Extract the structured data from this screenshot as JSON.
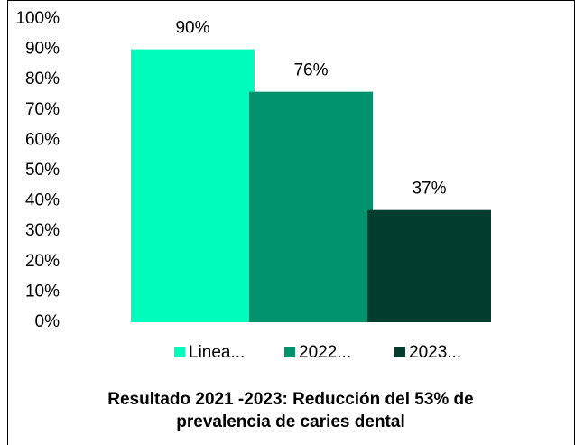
{
  "chart_data": {
    "type": "bar",
    "title": [
      "Resultado 2021 -2023: Reducción del 53% de",
      "prevalencia de caries dental"
    ],
    "categories": [
      null
    ],
    "series": [
      {
        "name": "Linea...",
        "color": "#00fcbd",
        "values": [
          90
        ],
        "value_labels": [
          "90%"
        ]
      },
      {
        "name": "2022...",
        "color": "#00936e",
        "values": [
          76
        ],
        "value_labels": [
          "76%"
        ]
      },
      {
        "name": "2023...",
        "color": "#003d2f",
        "values": [
          37
        ],
        "value_labels": [
          "37%"
        ]
      }
    ],
    "ylim": [
      0,
      100
    ],
    "yticks": [
      {
        "value": 0,
        "label": "0%"
      },
      {
        "value": 10,
        "label": "10%"
      },
      {
        "value": 20,
        "label": "20%"
      },
      {
        "value": 30,
        "label": "30%"
      },
      {
        "value": 40,
        "label": "40%"
      },
      {
        "value": 50,
        "label": "50%"
      },
      {
        "value": 60,
        "label": "60%"
      },
      {
        "value": 70,
        "label": "70%"
      },
      {
        "value": 80,
        "label": "80%"
      },
      {
        "value": 90,
        "label": "90%"
      },
      {
        "value": 100,
        "label": "100%"
      }
    ],
    "legend": "bottom"
  }
}
